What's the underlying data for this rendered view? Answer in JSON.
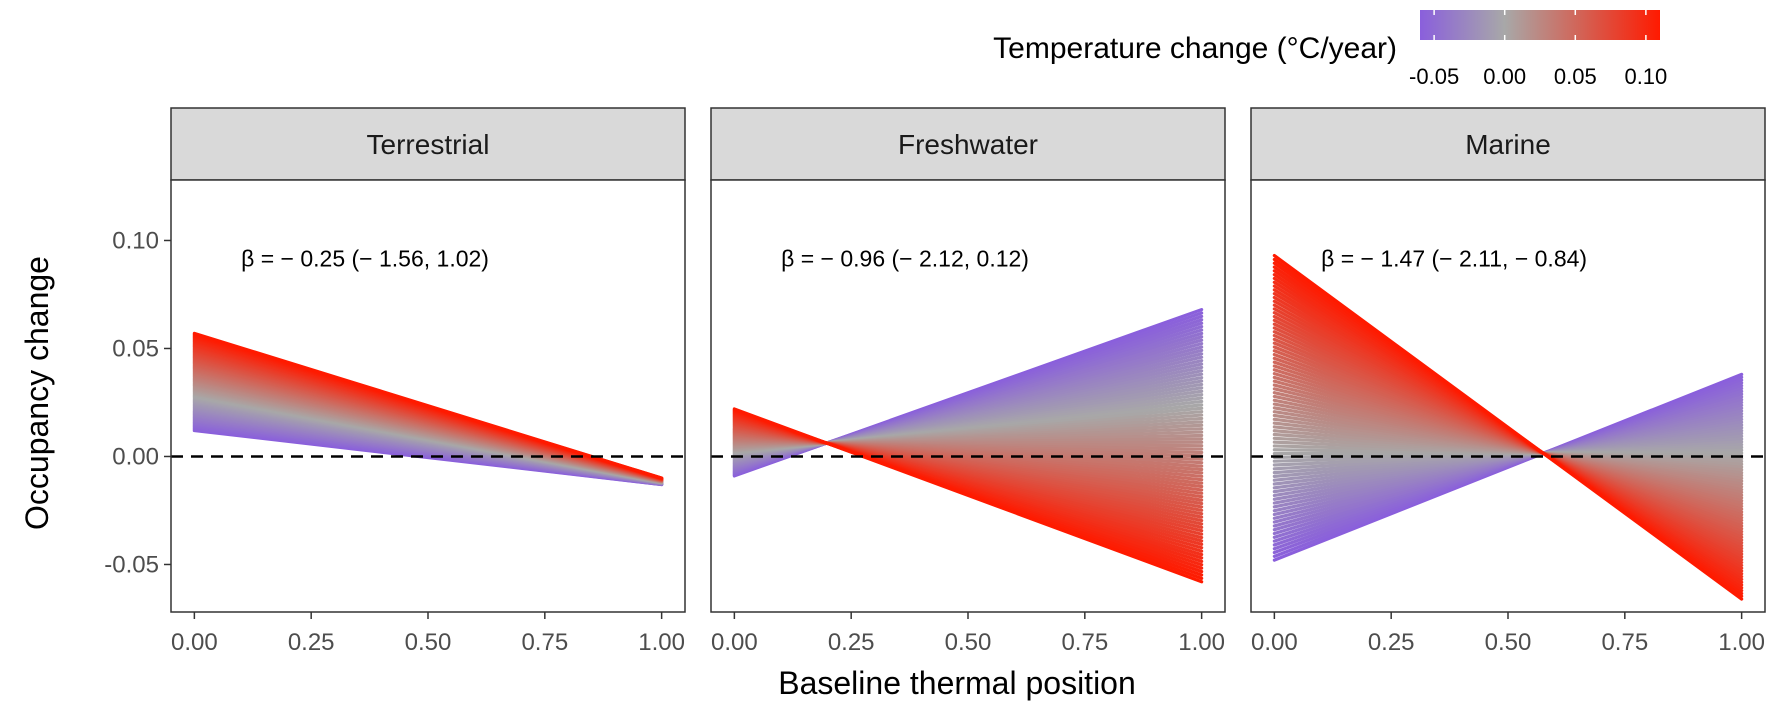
{
  "chart_data": {
    "type": "line",
    "xlabel": "Baseline thermal position",
    "ylabel": "Occupancy change",
    "xlim": [
      -0.05,
      1.05
    ],
    "ylim": [
      -0.072,
      0.128
    ],
    "x_ticks": [
      "0.00",
      "0.25",
      "0.50",
      "0.75",
      "1.00"
    ],
    "y_ticks": [
      "-0.05",
      "0.00",
      "0.05",
      "0.10"
    ],
    "reference_line": {
      "y": 0,
      "style": "dashed"
    },
    "legend": {
      "title": "Temperature change (°C/year)",
      "ticks": [
        "-0.05",
        "0.00",
        "0.05",
        "0.10"
      ],
      "range": [
        -0.06,
        0.11
      ],
      "colors": {
        "low": "#8a5fdc",
        "mid": "#a8a8a8",
        "high": "#ff1a00"
      },
      "placement": "top-right"
    },
    "panels": [
      {
        "name": "Terrestrial",
        "annotation": "β = − 0.25 (− 1.56, 1.02)",
        "series": [
          {
            "temp": -0.06,
            "x": [
              0,
              1
            ],
            "y": [
              0.012,
              -0.013
            ]
          },
          {
            "temp": 0.11,
            "x": [
              0,
              1
            ],
            "y": [
              0.057,
              -0.01
            ]
          }
        ]
      },
      {
        "name": "Freshwater",
        "annotation": "β = − 0.96 (− 2.12, 0.12)",
        "series": [
          {
            "temp": -0.06,
            "x": [
              0,
              1
            ],
            "y": [
              -0.009,
              0.068
            ]
          },
          {
            "temp": 0.11,
            "x": [
              0,
              1
            ],
            "y": [
              0.022,
              -0.058
            ]
          }
        ]
      },
      {
        "name": "Marine",
        "annotation": "β = − 1.47 (− 2.11, − 0.84)",
        "series": [
          {
            "temp": -0.06,
            "x": [
              0,
              1
            ],
            "y": [
              -0.048,
              0.038
            ]
          },
          {
            "temp": 0.11,
            "x": [
              0,
              1
            ],
            "y": [
              0.093,
              -0.066
            ]
          }
        ]
      }
    ]
  }
}
